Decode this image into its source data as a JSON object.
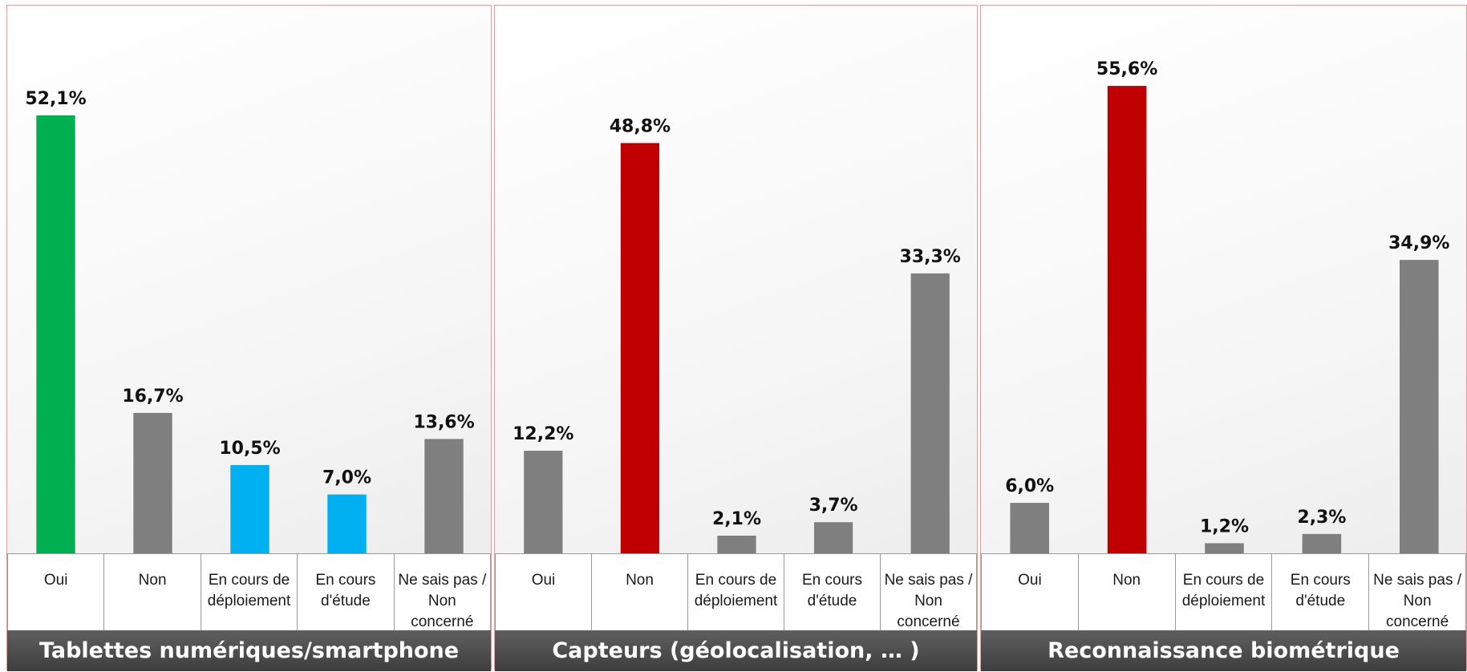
{
  "chart_data": [
    {
      "type": "bar",
      "title": "Tablettes numériques/smartphone",
      "categories": [
        "Oui",
        "Non",
        "En cours de\ndéploiement",
        "En cours\nd'étude",
        "Ne sais pas /\nNon\nconcerné"
      ],
      "values": [
        52.1,
        16.7,
        10.5,
        7.0,
        13.6
      ],
      "value_labels": [
        "52,1%",
        "16,7%",
        "10,5%",
        "7,0%",
        "13,6%"
      ],
      "colors": [
        "#00B050",
        "#7F7F7F",
        "#00B0F0",
        "#00B0F0",
        "#7F7F7F"
      ],
      "ylim": [
        0,
        62
      ],
      "grid": false
    },
    {
      "type": "bar",
      "title": "Capteurs (géolocalisation, … )",
      "categories": [
        "Oui",
        "Non",
        "En cours de\ndéploiement",
        "En cours\nd'étude",
        "Ne sais pas /\nNon\nconcerné"
      ],
      "values": [
        12.2,
        48.8,
        2.1,
        3.7,
        33.3
      ],
      "value_labels": [
        "12,2%",
        "48,8%",
        "2,1%",
        "3,7%",
        "33,3%"
      ],
      "colors": [
        "#7F7F7F",
        "#C00000",
        "#7F7F7F",
        "#7F7F7F",
        "#7F7F7F"
      ],
      "ylim": [
        0,
        62
      ],
      "grid": false
    },
    {
      "type": "bar",
      "title": "Reconnaissance biométrique",
      "categories": [
        "Oui",
        "Non",
        "En cours de\ndéploiement",
        "En cours\nd'étude",
        "Ne sais pas /\nNon\nconcerné"
      ],
      "values": [
        6.0,
        55.6,
        1.2,
        2.3,
        34.9
      ],
      "value_labels": [
        "6,0%",
        "55,6%",
        "1,2%",
        "2,3%",
        "34,9%"
      ],
      "colors": [
        "#7F7F7F",
        "#C00000",
        "#7F7F7F",
        "#7F7F7F",
        "#7F7F7F"
      ],
      "ylim": [
        0,
        62
      ],
      "grid": false
    }
  ]
}
